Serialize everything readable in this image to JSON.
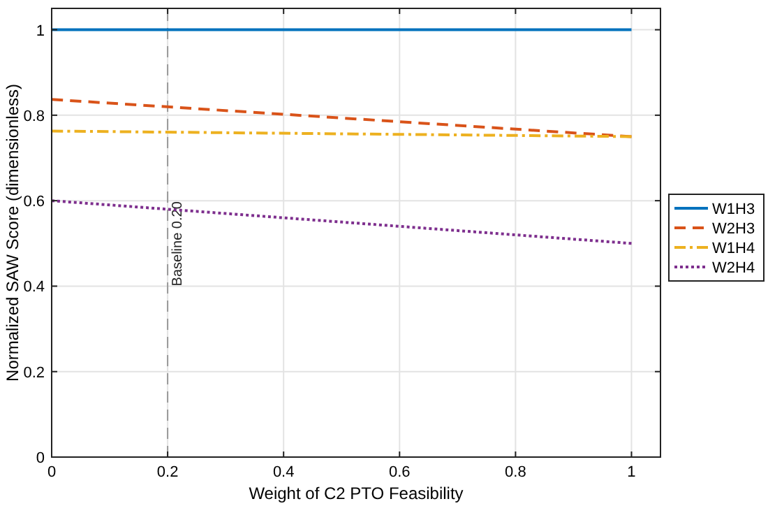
{
  "chart_data": {
    "type": "line",
    "xlabel": "Weight of C2 PTO Feasibility",
    "ylabel": "Normalized SAW Score (dimensionless)",
    "x": [
      0,
      1
    ],
    "series": [
      {
        "name": "W1H3",
        "color": "#0072bd",
        "values": [
          1,
          1
        ],
        "line_style": "solid"
      },
      {
        "name": "W2H3",
        "color": "#d95319",
        "values": [
          0.837,
          0.75
        ],
        "line_style": "dashed"
      },
      {
        "name": "W1H4",
        "color": "#edb120",
        "values": [
          0.763,
          0.75
        ],
        "line_style": "dashdot"
      },
      {
        "name": "W2H4",
        "color": "#7e2f8e",
        "values": [
          0.6,
          0.5
        ],
        "line_style": "dotted"
      }
    ],
    "xlim": [
      0,
      1.05
    ],
    "xticks": [
      0,
      0.2,
      0.4,
      0.6,
      0.8,
      1
    ],
    "ylim": [
      0,
      1.05
    ],
    "yticks": [
      0,
      0.2,
      0.4,
      0.6,
      0.8,
      1
    ],
    "ref_lines": [
      {
        "axis": "x",
        "value": 0.2,
        "label": "Baseline 0.20",
        "color": "#999999",
        "line_style": "dashed"
      }
    ],
    "grid": true,
    "legend": "right",
    "marker": "none"
  }
}
